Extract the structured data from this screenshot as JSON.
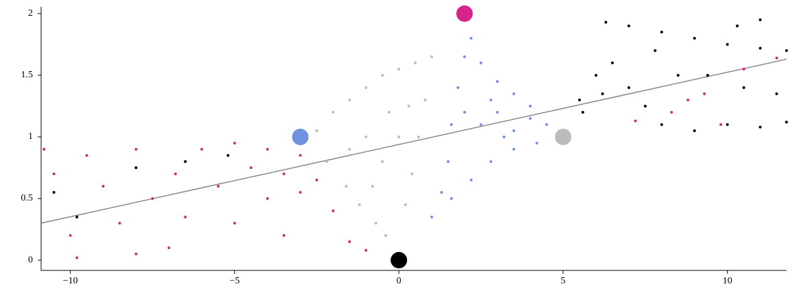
{
  "chart_data": {
    "type": "scatter",
    "xlim": [
      -10.89,
      11.8
    ],
    "ylim": [
      -0.083,
      2.055
    ],
    "xticks": [
      {
        "value": -10,
        "label": "−10"
      },
      {
        "value": -5,
        "label": "−5"
      },
      0,
      5,
      10
    ],
    "yticks": [
      0,
      0.5,
      1,
      1.5,
      2
    ],
    "series": [
      {
        "kind": "line",
        "color": "#888888",
        "x": [
          -10.89,
          11.8
        ],
        "values": [
          0.3,
          1.63
        ]
      },
      {
        "kind": "points",
        "color": "#d6248a",
        "x": [
          -10.8,
          -10.5,
          -10,
          -9.5,
          -9,
          -8.5,
          -8,
          -7.5,
          -7,
          -6.8,
          -6.5,
          -6,
          -5.5,
          -5,
          -5,
          -4.5,
          -4,
          -4,
          -3.5,
          -3,
          -3,
          -2.5,
          -2,
          -1.5,
          -1,
          -3.5,
          -8,
          -9.8,
          7.2,
          8.3,
          9.3,
          10.5,
          11.5,
          9.8,
          8.8
        ],
        "values": [
          0.9,
          0.7,
          0.2,
          0.85,
          0.6,
          0.3,
          0.9,
          0.5,
          0.1,
          0.7,
          0.35,
          0.9,
          0.6,
          0.95,
          0.3,
          0.75,
          0.5,
          0.9,
          0.7,
          0.85,
          0.55,
          0.65,
          0.4,
          0.15,
          0.08,
          0.2,
          0.05,
          0.02,
          1.13,
          1.2,
          1.35,
          1.55,
          1.64,
          1.1,
          1.3
        ]
      },
      {
        "kind": "points",
        "color": "#bbbbbb",
        "x": [
          -2.8,
          -2.2,
          -1.6,
          -1.2,
          -0.7,
          -0.4,
          -2.5,
          -2,
          -1.5,
          -1,
          -0.5,
          0,
          0.5,
          1,
          0.8,
          0.6,
          0.4,
          0.2,
          -0.5,
          -1,
          0,
          -1.5,
          -0.3,
          0.3,
          -0.8
        ],
        "values": [
          0.98,
          0.8,
          0.6,
          0.45,
          0.3,
          0.2,
          1.05,
          1.2,
          1.3,
          1.4,
          1.5,
          1.55,
          1.6,
          1.65,
          1.3,
          1,
          0.7,
          0.45,
          0.8,
          1,
          1,
          0.9,
          1.2,
          1.25,
          0.6
        ]
      },
      {
        "kind": "points",
        "color": "#7090e0",
        "x": [
          1,
          1.3,
          1.5,
          1.6,
          1.8,
          2,
          2.2,
          2.5,
          3,
          3.5,
          4,
          4.5,
          4.9,
          4.2,
          3.5,
          2.8,
          2.2,
          1.6,
          2.5,
          3,
          3.5,
          2.8,
          2,
          4,
          3.2
        ],
        "values": [
          0.35,
          0.55,
          0.8,
          1.1,
          1.4,
          1.65,
          1.8,
          1.6,
          1.45,
          1.35,
          1.25,
          1.1,
          1.02,
          0.95,
          0.9,
          0.8,
          0.65,
          0.5,
          1.1,
          1.2,
          1.05,
          1.3,
          1.2,
          1.15,
          1
        ]
      },
      {
        "kind": "points",
        "color": "#000000",
        "x": [
          6.3,
          7,
          8,
          9,
          10,
          11,
          11.8,
          5.5,
          6,
          6.5,
          7,
          7.5,
          8,
          9,
          10,
          11,
          11.8,
          9.4,
          10.5,
          11.5,
          8.5,
          7.8,
          10.3,
          11,
          -10.5,
          -9.8,
          -8,
          -6.5,
          -5.2,
          5.6,
          6.2
        ],
        "values": [
          1.93,
          1.9,
          1.85,
          1.8,
          1.75,
          1.72,
          1.7,
          1.3,
          1.5,
          1.6,
          1.4,
          1.25,
          1.1,
          1.05,
          1.1,
          1.08,
          1.12,
          1.5,
          1.4,
          1.35,
          1.5,
          1.7,
          1.9,
          1.95,
          0.55,
          0.35,
          0.75,
          0.8,
          0.85,
          1.2,
          1.35
        ]
      },
      {
        "kind": "large",
        "color": "#d6248a",
        "x": [
          2
        ],
        "values": [
          2
        ]
      },
      {
        "kind": "large",
        "color": "#7090e0",
        "x": [
          -3
        ],
        "values": [
          1
        ]
      },
      {
        "kind": "large",
        "color": "#000000",
        "x": [
          0
        ],
        "values": [
          0
        ]
      },
      {
        "kind": "large",
        "color": "#bbbbbb",
        "x": [
          5
        ],
        "values": [
          1
        ]
      }
    ]
  }
}
